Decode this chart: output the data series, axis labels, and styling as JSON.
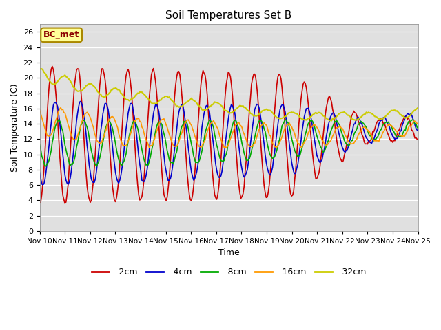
{
  "title": "Soil Temperatures Set B",
  "xlabel": "Time",
  "ylabel": "Soil Temperature (C)",
  "annotation": "BC_met",
  "ylim": [
    0,
    27
  ],
  "yticks": [
    0,
    2,
    4,
    6,
    8,
    10,
    12,
    14,
    16,
    18,
    20,
    22,
    24,
    26
  ],
  "xtick_labels": [
    "Nov 10",
    "Nov 11",
    "Nov 12",
    "Nov 13",
    "Nov 14",
    "Nov 15",
    "Nov 16",
    "Nov 17",
    "Nov 18",
    "Nov 19",
    "Nov 20",
    "Nov 21",
    "Nov 22",
    "Nov 23",
    "Nov 24",
    "Nov 25"
  ],
  "series": {
    "-2cm": {
      "color": "#cc0000",
      "lw": 1.2
    },
    "-4cm": {
      "color": "#0000cc",
      "lw": 1.2
    },
    "-8cm": {
      "color": "#00aa00",
      "lw": 1.2
    },
    "-16cm": {
      "color": "#ff9900",
      "lw": 1.2
    },
    "-32cm": {
      "color": "#cccc00",
      "lw": 1.5
    }
  },
  "background_color": "#e0e0e0",
  "legend_ncol": 5
}
